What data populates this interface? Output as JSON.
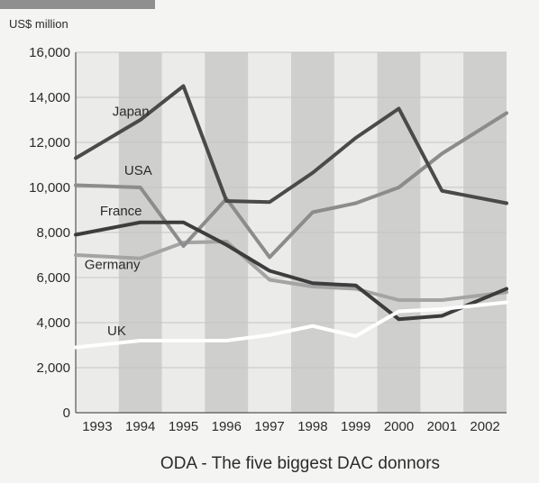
{
  "chart_data": {
    "type": "line",
    "title": "ODA - The five biggest DAC donnors",
    "ylabel": "US$ million",
    "xlabel": "",
    "x": [
      "1993",
      "1994",
      "1995",
      "1996",
      "1997",
      "1998",
      "1999",
      "2000",
      "2001",
      "2002"
    ],
    "y_ticks": [
      "0",
      "2,000",
      "4,000",
      "6,000",
      "8,000",
      "10,000",
      "12,000",
      "14,000",
      "16,000"
    ],
    "ylim": [
      0,
      16000
    ],
    "grid": "alternating vertical column bands",
    "series": [
      {
        "name": "Japan",
        "color": "#4a4a4a",
        "values": [
          11300,
          13000,
          14500,
          9400,
          9350,
          10650,
          12200,
          13500,
          9850,
          9300
        ]
      },
      {
        "name": "USA",
        "color": "#8c8c8c",
        "values": [
          10100,
          10000,
          7400,
          9500,
          6900,
          8900,
          9300,
          10000,
          11500,
          13300
        ]
      },
      {
        "name": "France",
        "color": "#3d3d3d",
        "values": [
          7900,
          8450,
          8450,
          7450,
          6300,
          5750,
          5650,
          4150,
          4300,
          5500
        ]
      },
      {
        "name": "Germany",
        "color": "#a4a4a4",
        "values": [
          7000,
          6850,
          7550,
          7600,
          5900,
          5600,
          5500,
          5000,
          5000,
          5350
        ]
      },
      {
        "name": "UK",
        "color": "#ffffff",
        "values": [
          2900,
          3200,
          3200,
          3200,
          3450,
          3850,
          3400,
          4500,
          4600,
          4900
        ]
      }
    ]
  }
}
